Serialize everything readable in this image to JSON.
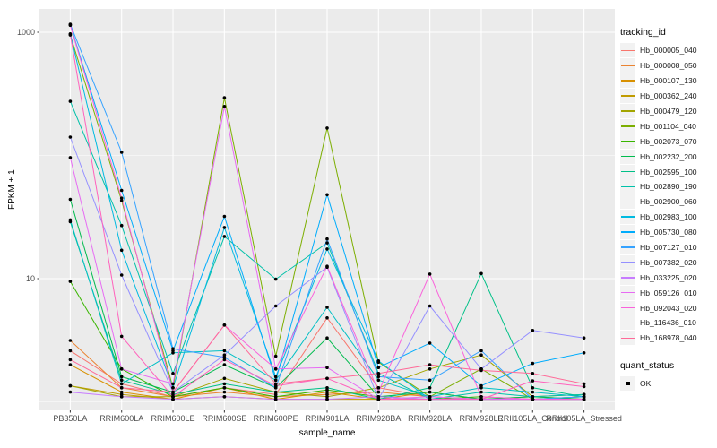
{
  "colors": {
    "panel_bg": "#EBEBEB",
    "grid_major": "#FFFFFF",
    "grid_minor": "#F7F7F7",
    "tick_mark": "#333333",
    "tick_label": "#4D4D4D",
    "point": "#000000",
    "legend_key_bg": "#F2F2F2"
  },
  "chart_data": {
    "type": "line",
    "xlabel": "sample_name",
    "ylabel": "FPKM + 1",
    "y_scale": "log10",
    "ylim": [
      0.85,
      1400
    ],
    "grid": "on",
    "legend_position": "right",
    "x_categories": [
      "PB350LA",
      "RRIM600LA",
      "RRIM600LE",
      "RRIM600SE",
      "RRIM600PE",
      "RRIM901LA",
      "RRIM928BA",
      "RRIM928LA",
      "RRIM928LE",
      "RRII105LA_Control",
      "RRII105LA_Stressed"
    ],
    "y_ticks": [
      {
        "label": "1000",
        "value": 1000
      },
      {
        "label": "10",
        "value": 10
      }
    ],
    "y_minor_gridlines": [
      100,
      1
    ],
    "legend": {
      "title": "tracking_id"
    },
    "legend2": {
      "title": "quant_status",
      "items": [
        {
          "label": "OK",
          "symbol": "point"
        }
      ]
    },
    "series": [
      {
        "name": "Hb_000005_040",
        "color": "#F8766D",
        "values": [
          2.6,
          1.4,
          1.1,
          1.3,
          1.15,
          4.8,
          1.3,
          1.1,
          1.05,
          1.05,
          1.05
        ]
      },
      {
        "name": "Hb_000008_050",
        "color": "#EA8331",
        "values": [
          3.15,
          1.3,
          1.1,
          1.2,
          1.1,
          1.15,
          1.2,
          1.1,
          1.05,
          1.1,
          1.05
        ]
      },
      {
        "name": "Hb_000107_130",
        "color": "#D89000",
        "values": [
          2.0,
          1.2,
          1.05,
          1.3,
          1.05,
          1.2,
          1.05,
          1.2,
          1.05,
          1.05,
          1.1
        ]
      },
      {
        "name": "Hb_000362_240",
        "color": "#C09B00",
        "values": [
          1.35,
          1.15,
          1.05,
          1.1,
          1.05,
          1.05,
          1.05,
          1.05,
          1.05,
          1.05,
          1.05
        ]
      },
      {
        "name": "Hb_000479_120",
        "color": "#A3A500",
        "values": [
          1.35,
          1.1,
          1.1,
          1.55,
          1.2,
          1.1,
          1.3,
          1.85,
          2.4,
          1.1,
          1.15
        ]
      },
      {
        "name": "Hb_001104_040",
        "color": "#7CAE00",
        "values": [
          950,
          43,
          1.3,
          294,
          2.35,
          167,
          2.1,
          1.1,
          1.85,
          1.05,
          1.1
        ]
      },
      {
        "name": "Hb_002073_070",
        "color": "#39B600",
        "values": [
          9.5,
          1.85,
          1.1,
          1.3,
          1.1,
          1.25,
          1.1,
          1.05,
          1.1,
          1.05,
          1.05
        ]
      },
      {
        "name": "Hb_002232_200",
        "color": "#00BB4E",
        "values": [
          44,
          1.6,
          1.2,
          2.0,
          1.3,
          3.3,
          1.1,
          1.2,
          1.05,
          1.1,
          1.05
        ]
      },
      {
        "name": "Hb_002595_100",
        "color": "#00C087",
        "values": [
          29,
          1.5,
          1.15,
          1.4,
          1.2,
          1.3,
          1.05,
          1.3,
          11,
          1.3,
          1.1
        ]
      },
      {
        "name": "Hb_002890_190",
        "color": "#00C1A9",
        "values": [
          275,
          27,
          1.7,
          22,
          9.9,
          19.5,
          1.7,
          1.05,
          1.2,
          1.1,
          1.15
        ]
      },
      {
        "name": "Hb_002900_060",
        "color": "#00BFC4",
        "values": [
          30,
          1.4,
          2.5,
          2.6,
          1.5,
          5.85,
          1.5,
          1.1,
          1.3,
          1.2,
          1.1
        ]
      },
      {
        "name": "Hb_002983_100",
        "color": "#00BAE0",
        "values": [
          970,
          17,
          1.3,
          26,
          1.6,
          17.4,
          2.15,
          1.05,
          1.05,
          1.05,
          1.05
        ]
      },
      {
        "name": "Hb_005730_080",
        "color": "#00ACFC",
        "values": [
          1150,
          52,
          2.6,
          32,
          1.5,
          48,
          1.9,
          3.0,
          1.35,
          2.05,
          2.5
        ]
      },
      {
        "name": "Hb_007127_010",
        "color": "#35A2FF",
        "values": [
          1160,
          106,
          2.7,
          2.3,
          1.3,
          21,
          1.6,
          1.5,
          2.6,
          1.05,
          1.1
        ]
      },
      {
        "name": "Hb_007382_020",
        "color": "#9590FF",
        "values": [
          141,
          10.7,
          1.2,
          2.4,
          6.0,
          12.4,
          1.05,
          6.0,
          1.85,
          3.8,
          3.3
        ]
      },
      {
        "name": "Hb_033225_020",
        "color": "#C77CFF",
        "values": [
          1.2,
          1.1,
          1.05,
          1.1,
          1.05,
          1.05,
          1.1,
          1.05,
          1.05,
          1.05,
          1.05
        ]
      },
      {
        "name": "Hb_059126_010",
        "color": "#E76BF3",
        "values": [
          96,
          1.85,
          1.4,
          250,
          1.85,
          1.9,
          1.05,
          1.1,
          1.05,
          1.05,
          1.05
        ]
      },
      {
        "name": "Hb_092043_020",
        "color": "#FA62DB",
        "values": [
          1140,
          45,
          1.2,
          4.2,
          1.85,
          12.6,
          1.2,
          10.9,
          1.1,
          1.05,
          1.05
        ]
      },
      {
        "name": "Hb_116436_010",
        "color": "#FF62BC",
        "values": [
          960,
          3.4,
          1.1,
          2.2,
          1.35,
          1.55,
          1.05,
          1.05,
          1.05,
          1.48,
          1.33
        ]
      },
      {
        "name": "Hb_168978_040",
        "color": "#FF6A98",
        "values": [
          2.2,
          1.3,
          1.2,
          4.2,
          1.4,
          1.55,
          1.7,
          2.0,
          1.8,
          1.7,
          1.4
        ]
      }
    ]
  }
}
